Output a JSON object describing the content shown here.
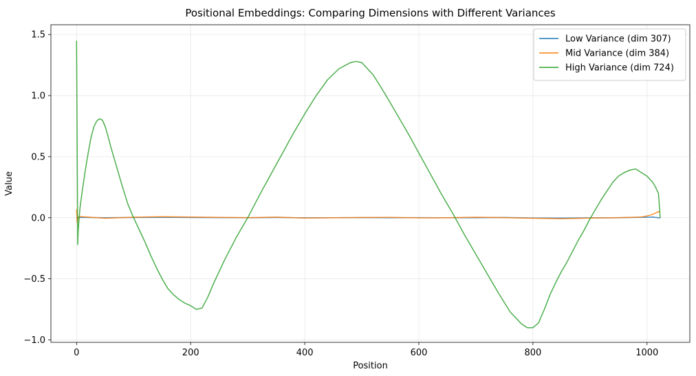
{
  "chart_data": {
    "type": "line",
    "title": "Positional Embeddings: Comparing Dimensions with Different Variances",
    "xlabel": "Position",
    "ylabel": "Value",
    "xlim": [
      -45,
      1075
    ],
    "ylim": [
      -1.02,
      1.58
    ],
    "xticks": [
      0,
      200,
      400,
      600,
      800,
      1000
    ],
    "xtick_labels": [
      "0",
      "200",
      "400",
      "600",
      "800",
      "1000"
    ],
    "yticks": [
      -1.0,
      -0.5,
      0.0,
      0.5,
      1.0,
      1.5
    ],
    "ytick_labels": [
      "−1.0",
      "−0.5",
      "0.0",
      "0.5",
      "1.0",
      "1.5"
    ],
    "grid": true,
    "legend_position": "upper right",
    "series": [
      {
        "name": "Low Variance (dim 307)",
        "color": "#1f77b4",
        "x": [
          0,
          2,
          4,
          50,
          100,
          150,
          200,
          250,
          300,
          350,
          400,
          450,
          500,
          550,
          600,
          650,
          700,
          750,
          800,
          850,
          900,
          950,
          1000,
          1010,
          1023
        ],
        "y": [
          0.0,
          0.002,
          0.003,
          0.0,
          0.002,
          0.003,
          0.002,
          0.001,
          0.0,
          0.002,
          -0.001,
          0.0,
          0.001,
          0.0,
          0.001,
          0.0,
          0.0,
          0.002,
          -0.002,
          -0.003,
          -0.001,
          0.0,
          0.004,
          0.006,
          -0.002
        ]
      },
      {
        "name": "Mid Variance (dim 384)",
        "color": "#ff7f0e",
        "x": [
          0,
          1,
          3,
          5,
          50,
          100,
          150,
          200,
          250,
          300,
          350,
          400,
          450,
          500,
          550,
          600,
          650,
          700,
          750,
          800,
          850,
          900,
          950,
          990,
          1000,
          1010,
          1020,
          1023
        ],
        "y": [
          0.07,
          -0.04,
          0.0,
          0.01,
          -0.004,
          0.004,
          0.008,
          0.006,
          0.003,
          0.001,
          0.005,
          -0.003,
          0.0,
          0.002,
          0.003,
          -0.001,
          0.0,
          0.004,
          0.001,
          -0.004,
          -0.008,
          -0.003,
          0.001,
          0.006,
          0.015,
          0.028,
          0.05,
          0.045
        ]
      },
      {
        "name": "High Variance (dim 724)",
        "color": "#2ca02c",
        "x": [
          0,
          1,
          2,
          3,
          6,
          10,
          15,
          20,
          25,
          30,
          35,
          40,
          45,
          50,
          55,
          60,
          70,
          80,
          90,
          100,
          110,
          120,
          130,
          140,
          150,
          160,
          170,
          180,
          190,
          200,
          210,
          220,
          230,
          240,
          250,
          260,
          270,
          280,
          290,
          300,
          320,
          340,
          360,
          380,
          400,
          420,
          440,
          460,
          480,
          490,
          500,
          520,
          540,
          560,
          580,
          600,
          620,
          640,
          660,
          680,
          700,
          720,
          740,
          760,
          780,
          790,
          800,
          810,
          820,
          830,
          840,
          850,
          860,
          870,
          880,
          890,
          900,
          910,
          920,
          930,
          940,
          950,
          960,
          970,
          980,
          990,
          1000,
          1010,
          1015,
          1020,
          1022,
          1023
        ],
        "y": [
          1.45,
          0.6,
          -0.22,
          -0.1,
          0.08,
          0.22,
          0.38,
          0.52,
          0.65,
          0.74,
          0.79,
          0.81,
          0.8,
          0.75,
          0.67,
          0.58,
          0.42,
          0.26,
          0.11,
          0.0,
          -0.1,
          -0.2,
          -0.31,
          -0.41,
          -0.5,
          -0.58,
          -0.63,
          -0.67,
          -0.7,
          -0.72,
          -0.75,
          -0.74,
          -0.65,
          -0.54,
          -0.44,
          -0.34,
          -0.25,
          -0.16,
          -0.08,
          0.0,
          0.18,
          0.35,
          0.52,
          0.69,
          0.85,
          1.0,
          1.13,
          1.22,
          1.27,
          1.28,
          1.27,
          1.17,
          1.02,
          0.86,
          0.7,
          0.53,
          0.36,
          0.19,
          0.03,
          -0.14,
          -0.3,
          -0.46,
          -0.62,
          -0.77,
          -0.87,
          -0.9,
          -0.9,
          -0.86,
          -0.75,
          -0.63,
          -0.53,
          -0.44,
          -0.36,
          -0.27,
          -0.18,
          -0.1,
          -0.01,
          0.07,
          0.15,
          0.22,
          0.29,
          0.34,
          0.37,
          0.39,
          0.4,
          0.37,
          0.34,
          0.29,
          0.25,
          0.2,
          0.08,
          0.0
        ]
      }
    ]
  }
}
